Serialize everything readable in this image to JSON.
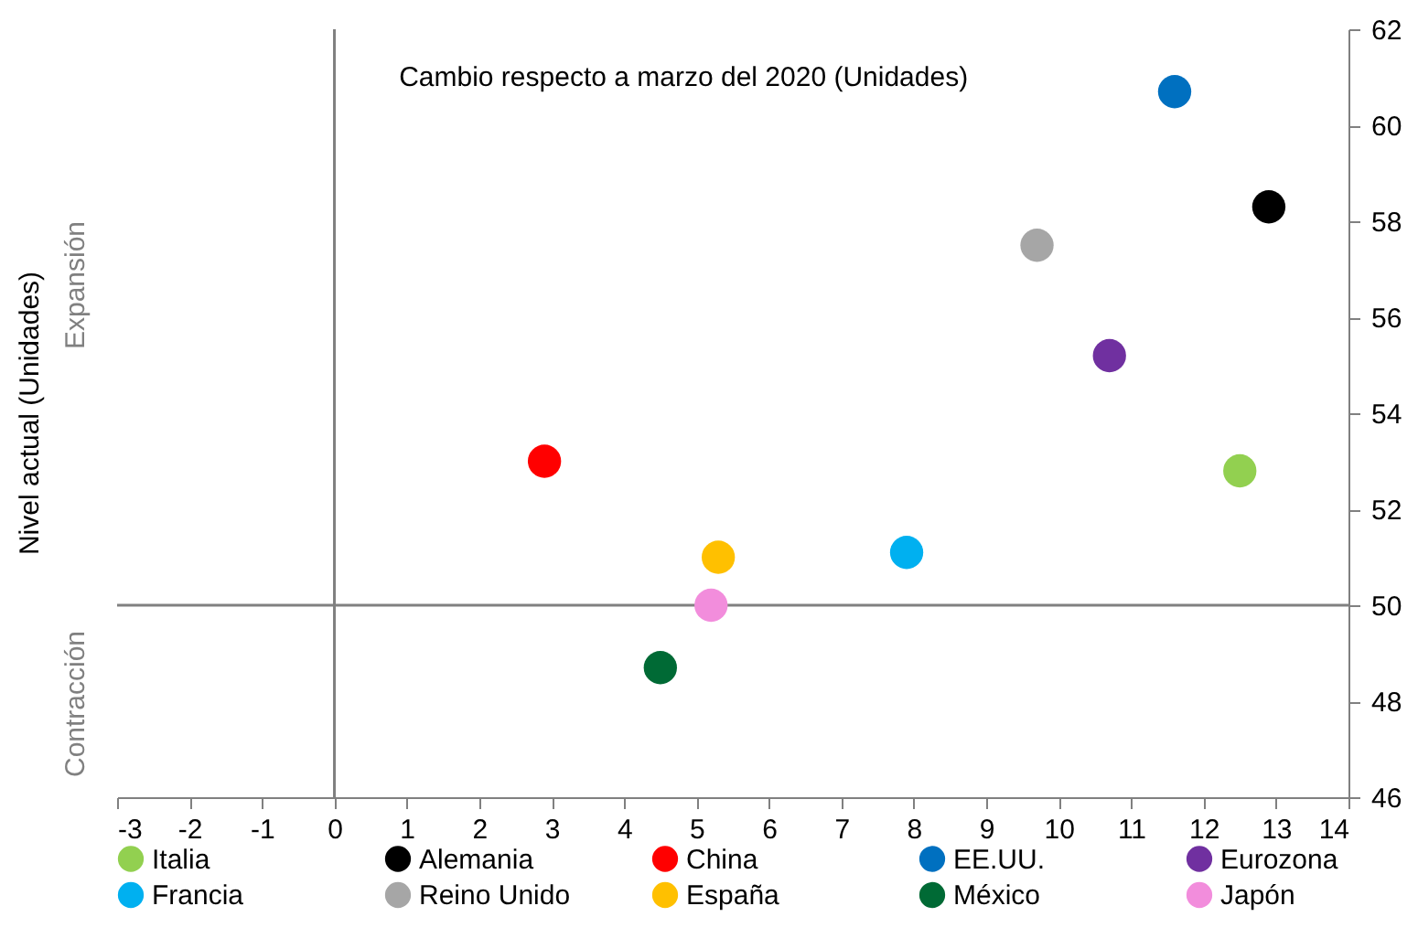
{
  "chart_data": {
    "type": "scatter",
    "ylabel": "Nivel actual (Unidades)",
    "annotations": [
      "Cambio respecto a marzo del 2020 (Unidades)",
      "Expansión",
      "Contracción"
    ],
    "series": [
      {
        "name": "Italia",
        "color": "#92d050",
        "x": [
          12.5
        ],
        "values": [
          52.8
        ]
      },
      {
        "name": "Alemania",
        "color": "#000000",
        "x": [
          12.9
        ],
        "values": [
          58.3
        ]
      },
      {
        "name": "China",
        "color": "#ff0000",
        "x": [
          2.9
        ],
        "values": [
          53.0
        ]
      },
      {
        "name": "EE.UU.",
        "color": "#0070c0",
        "x": [
          11.6
        ],
        "values": [
          60.7
        ]
      },
      {
        "name": "Eurozona",
        "color": "#7030a0",
        "x": [
          10.7
        ],
        "values": [
          55.2
        ]
      },
      {
        "name": "Francia",
        "color": "#00b0f0",
        "x": [
          7.9
        ],
        "values": [
          51.1
        ]
      },
      {
        "name": "Reino Unido",
        "color": "#a6a6a6",
        "x": [
          9.7
        ],
        "values": [
          57.5
        ]
      },
      {
        "name": "España",
        "color": "#ffc000",
        "x": [
          5.3
        ],
        "values": [
          51.0
        ]
      },
      {
        "name": "México",
        "color": "#006a35",
        "x": [
          4.5
        ],
        "values": [
          48.7
        ]
      },
      {
        "name": "Japón",
        "color": "#f28ddc",
        "x": [
          5.2
        ],
        "values": [
          50.0
        ]
      }
    ],
    "xlim": [
      -3,
      14
    ],
    "xticks": [
      -3,
      -2,
      -1,
      0,
      1,
      2,
      3,
      4,
      5,
      6,
      7,
      8,
      9,
      10,
      11,
      12,
      13,
      14
    ],
    "ylim": [
      46,
      62
    ],
    "yticks": [
      46,
      48,
      50,
      52,
      54,
      56,
      58,
      60,
      62
    ],
    "ref_lines": [
      {
        "axis": "x",
        "value": 0,
        "color": "#808080"
      },
      {
        "axis": "y",
        "value": 50,
        "color": "#808080"
      }
    ],
    "legend": "bottom",
    "marker": "circle"
  }
}
